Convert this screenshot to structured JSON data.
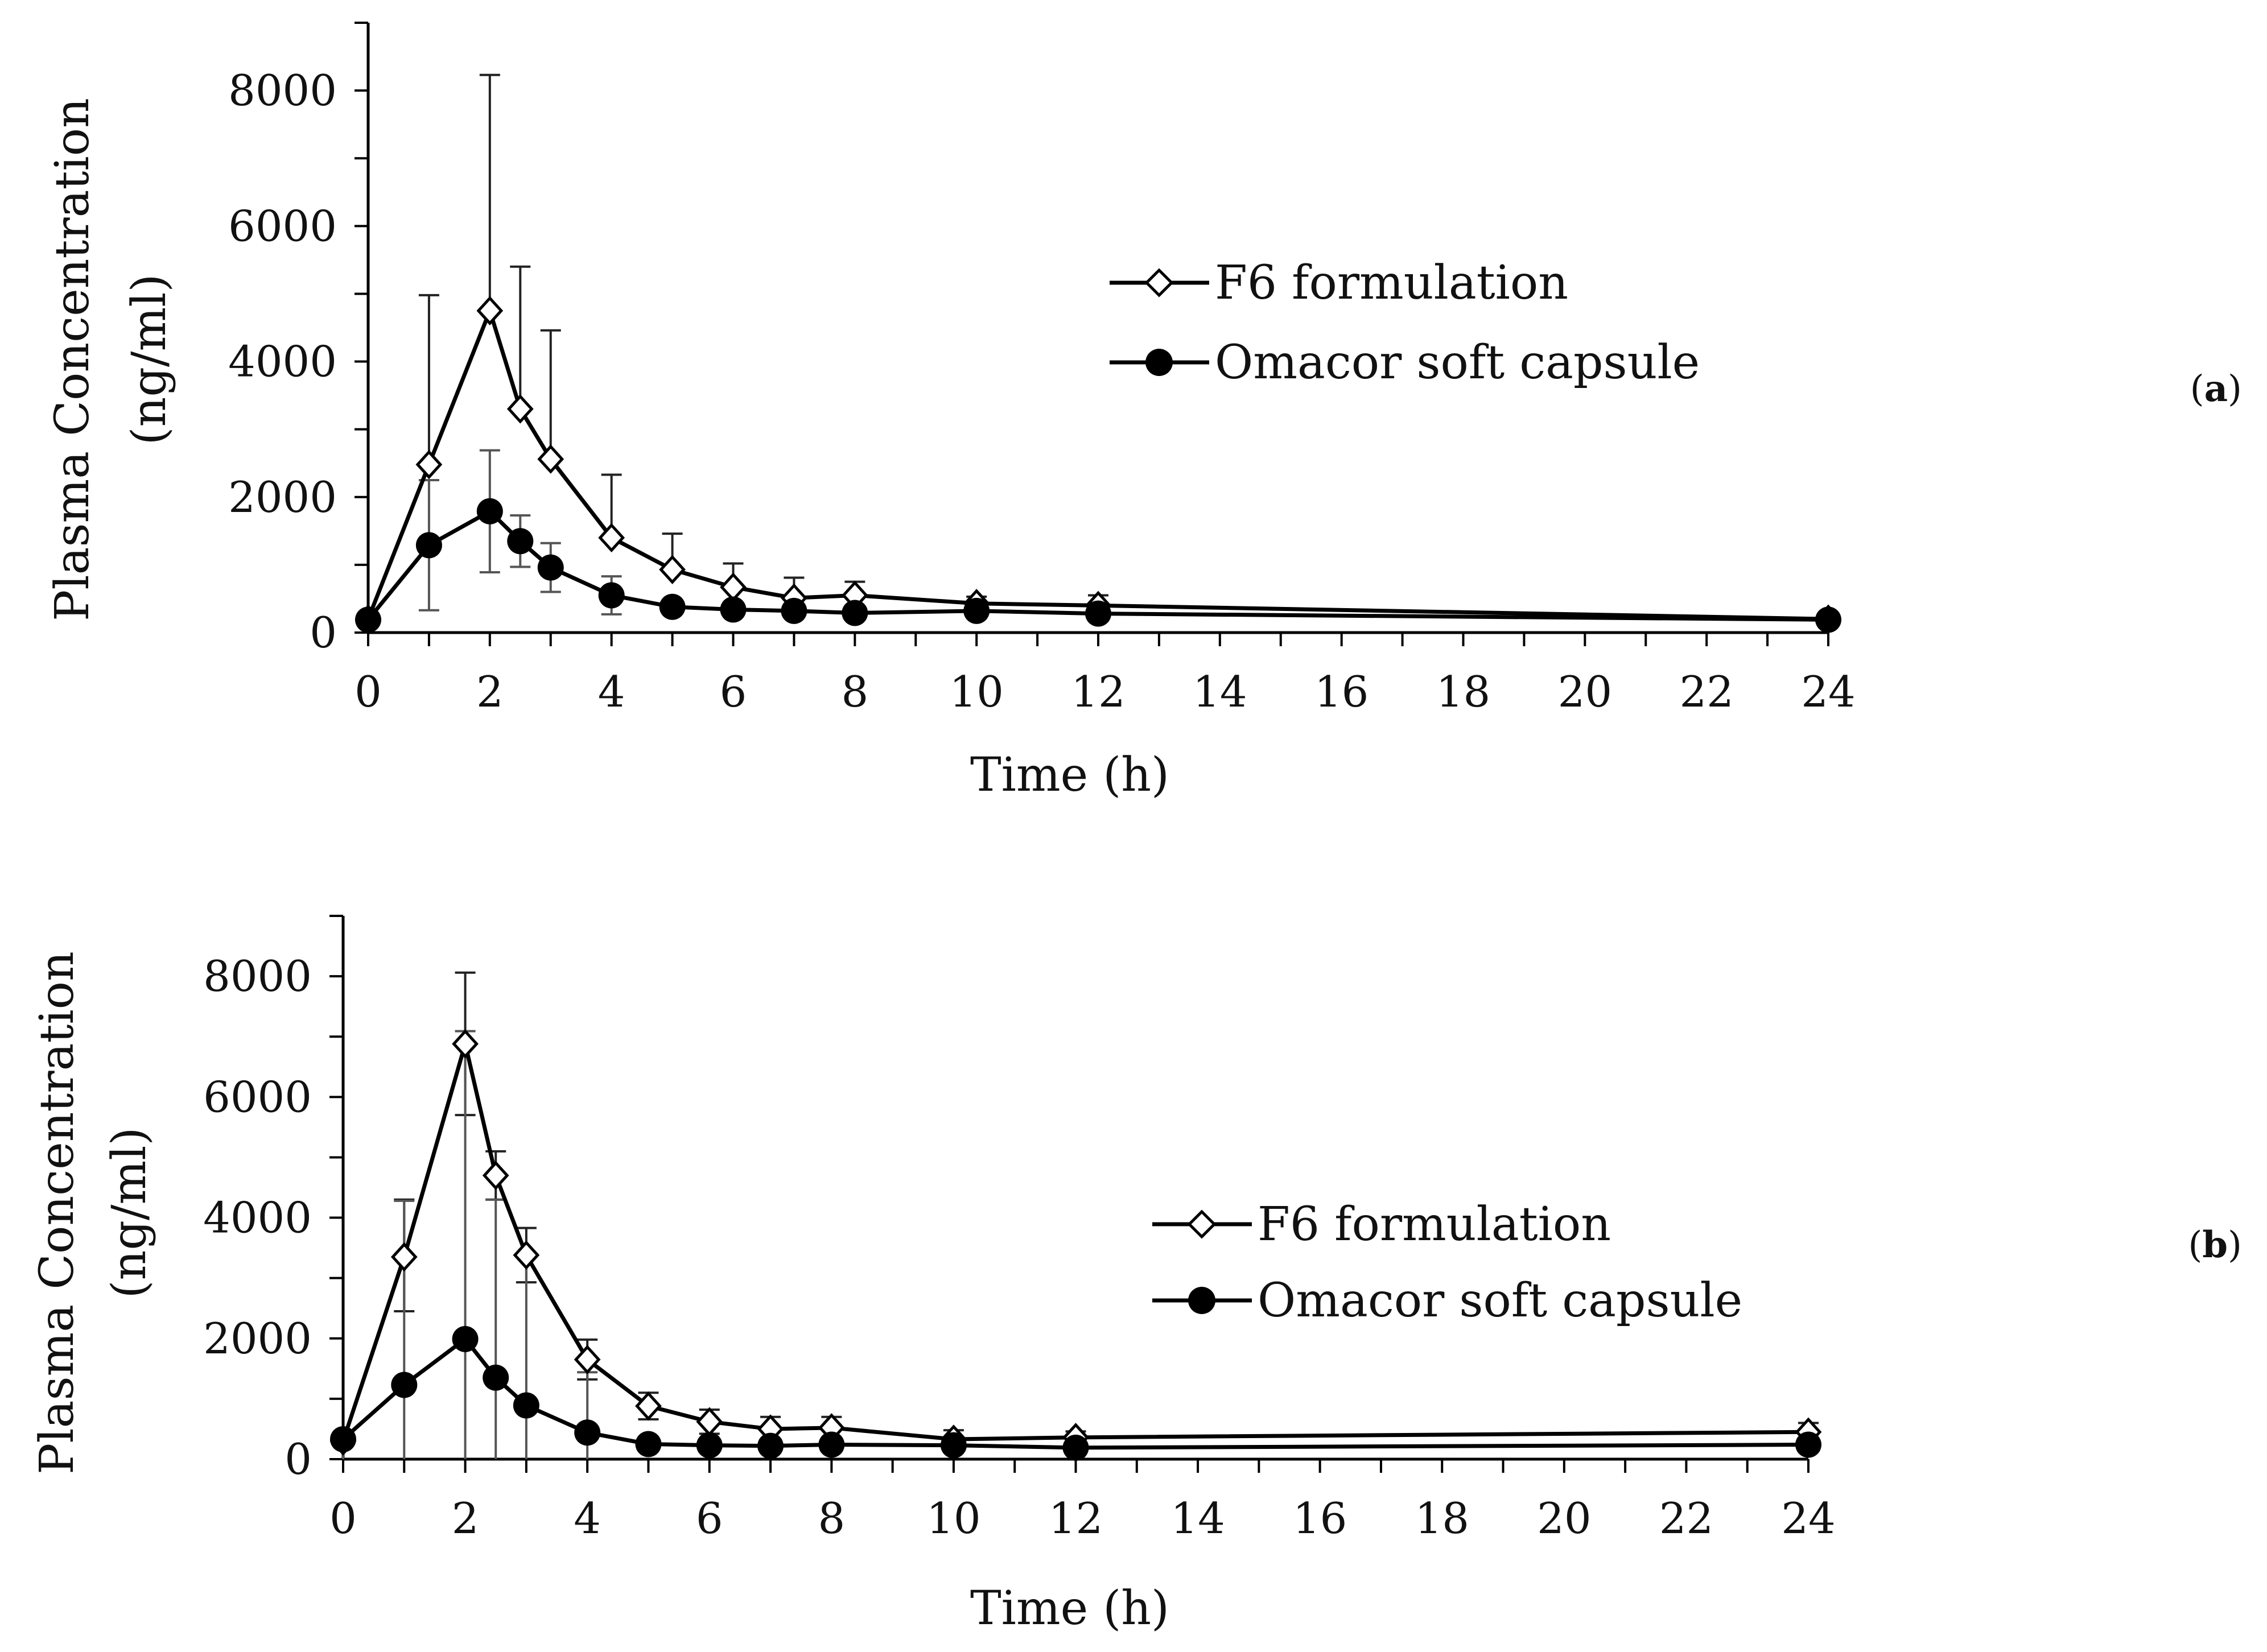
{
  "chart_data": [
    {
      "type": "line",
      "panel_label": "a",
      "xlabel": "Time (h)",
      "ylabel": [
        "Plasma Concentration",
        "(ng/ml)"
      ],
      "xlim": [
        0,
        24
      ],
      "ylim": [
        0,
        9000
      ],
      "x_ticks": [
        0,
        2,
        4,
        6,
        8,
        10,
        12,
        14,
        16,
        18,
        20,
        22,
        24
      ],
      "x_minor_step": 1,
      "y_ticks": [
        0,
        2000,
        4000,
        6000,
        8000
      ],
      "y_minor_step": 1000,
      "legend_position": "upper-middle",
      "series": [
        {
          "name": "F6 formulation",
          "marker": "diamond-open",
          "x": [
            0,
            1,
            2,
            2.5,
            3,
            4,
            5,
            6,
            7,
            8,
            10,
            12,
            24
          ],
          "y": [
            200,
            2480,
            4750,
            3300,
            2560,
            1400,
            930,
            670,
            510,
            550,
            430,
            400,
            200
          ],
          "err_up": [
            0,
            2500,
            3480,
            2100,
            1900,
            930,
            530,
            350,
            300,
            200,
            100,
            150,
            0
          ],
          "err_down": [
            0,
            0,
            0,
            0,
            0,
            0,
            0,
            0,
            0,
            0,
            0,
            0,
            0
          ]
        },
        {
          "name": "Omacor soft capsule",
          "marker": "circle-filled",
          "x": [
            0,
            1,
            2,
            2.5,
            3,
            4,
            5,
            6,
            7,
            8,
            10,
            12,
            24
          ],
          "y": [
            190,
            1290,
            1790,
            1350,
            960,
            550,
            380,
            340,
            320,
            290,
            320,
            280,
            190
          ],
          "err_up": [
            0,
            960,
            900,
            380,
            360,
            280,
            100,
            80,
            80,
            80,
            100,
            80,
            0
          ],
          "err_down": [
            0,
            960,
            900,
            380,
            360,
            280,
            100,
            80,
            80,
            80,
            100,
            80,
            0
          ]
        }
      ]
    },
    {
      "type": "line",
      "panel_label": "b",
      "xlabel": "Time (h)",
      "ylabel": [
        "Plasma Concentration",
        "(ng/ml)"
      ],
      "xlim": [
        0,
        24
      ],
      "ylim": [
        0,
        9000
      ],
      "x_ticks": [
        0,
        2,
        4,
        6,
        8,
        10,
        12,
        14,
        16,
        18,
        20,
        22,
        24
      ],
      "x_minor_step": 1,
      "y_ticks": [
        0,
        2000,
        4000,
        6000,
        8000
      ],
      "y_minor_step": 1000,
      "legend_position": "middle",
      "series": [
        {
          "name": "F6 formulation",
          "marker": "diamond-open",
          "x": [
            0,
            1,
            2,
            2.5,
            3,
            4,
            5,
            6,
            7,
            8,
            10,
            12,
            24
          ],
          "y": [
            300,
            3350,
            6880,
            4700,
            3380,
            1650,
            880,
            620,
            500,
            520,
            330,
            360,
            450
          ],
          "err_up": [
            0,
            950,
            1180,
            400,
            450,
            330,
            220,
            200,
            200,
            180,
            150,
            100,
            150
          ],
          "err_down": [
            0,
            900,
            1180,
            400,
            450,
            330,
            220,
            200,
            200,
            180,
            150,
            100,
            150
          ]
        },
        {
          "name": "Omacor soft capsule",
          "marker": "circle-filled",
          "x": [
            0,
            1,
            2,
            2.5,
            3,
            4,
            5,
            6,
            7,
            8,
            10,
            12,
            24
          ],
          "y": [
            330,
            1230,
            1990,
            1350,
            890,
            440,
            250,
            230,
            220,
            240,
            230,
            190,
            240
          ],
          "err_up": [
            0,
            3050,
            5100,
            2950,
            2500,
            1000,
            0,
            0,
            0,
            0,
            0,
            0,
            0
          ],
          "err_down": [
            330,
            1230,
            1990,
            1350,
            890,
            440,
            0,
            0,
            0,
            0,
            0,
            0,
            0
          ]
        }
      ]
    }
  ]
}
